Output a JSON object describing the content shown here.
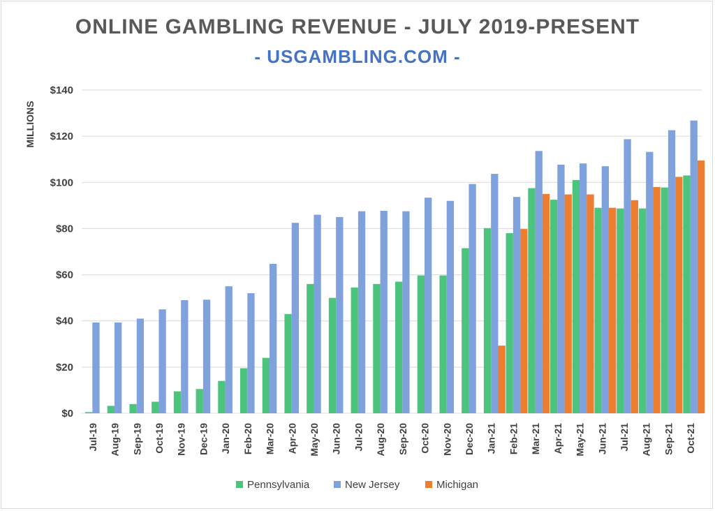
{
  "chart_data": {
    "type": "bar",
    "title": "ONLINE GAMBLING REVENUE - JULY 2019-PRESENT",
    "subtitle": "- USGAMBLING.COM -",
    "ylabel": "MILLIONS",
    "xlabel": "",
    "ylim": [
      0,
      140
    ],
    "yticks": [
      0,
      20,
      40,
      60,
      80,
      100,
      120,
      140
    ],
    "ytick_labels": [
      "$0",
      "$20",
      "$40",
      "$60",
      "$80",
      "$100",
      "$120",
      "$140"
    ],
    "grid": true,
    "legend_position": "bottom",
    "categories": [
      "Jul-19",
      "Aug-19",
      "Sep-19",
      "Oct-19",
      "Nov-19",
      "Dec-19",
      "Jan-20",
      "Feb-20",
      "Mar-20",
      "Apr-20",
      "May-20",
      "Jun-20",
      "Jul-20",
      "Aug-20",
      "Sep-20",
      "Oct-20",
      "Nov-20",
      "Dec-20",
      "Jan-21",
      "Feb-21",
      "Mar-21",
      "Apr-21",
      "May-21",
      "Jun-21",
      "Jul-21",
      "Aug-21",
      "Sep-21",
      "Oct-21"
    ],
    "series": [
      {
        "name": "Pennsylvania",
        "color": "#4dc47d",
        "values": [
          0.5,
          3.2,
          4,
          5,
          9.5,
          10.5,
          14,
          19.5,
          24,
          43,
          56,
          50,
          54.5,
          56,
          57,
          59.7,
          59.7,
          71.5,
          80.2,
          78,
          97.5,
          92.5,
          101,
          89,
          88.7,
          88.7,
          97.8,
          103
        ]
      },
      {
        "name": "New Jersey",
        "color": "#7fa1dc",
        "values": [
          39.3,
          39.3,
          41,
          45,
          49,
          49.2,
          55,
          52,
          64.7,
          82.5,
          86,
          85,
          87.5,
          87.7,
          87.5,
          93.4,
          92,
          99.3,
          103.7,
          93.7,
          113.6,
          107.7,
          108.2,
          107,
          118.7,
          113.2,
          122.6,
          126.8
        ]
      },
      {
        "name": "Michigan",
        "color": "#ed7d31",
        "values": [
          null,
          null,
          null,
          null,
          null,
          null,
          null,
          null,
          null,
          null,
          null,
          null,
          null,
          null,
          null,
          null,
          null,
          null,
          29.3,
          79.8,
          95,
          94.8,
          94.8,
          89,
          92.3,
          98,
          102.4,
          109.5
        ]
      }
    ]
  }
}
